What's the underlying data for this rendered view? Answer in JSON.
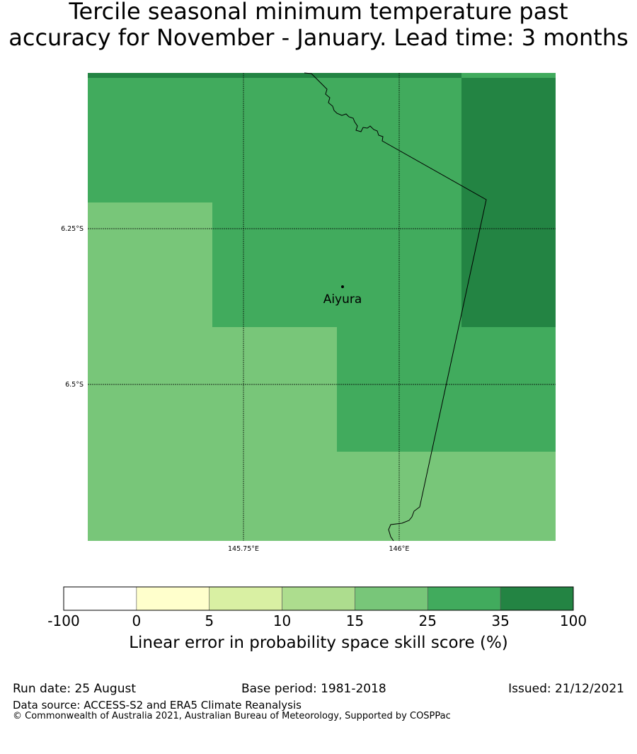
{
  "title": {
    "line1": "Tercile seasonal minimum temperature past",
    "line2": "accuracy for November - January. Lead time: 3 months"
  },
  "map": {
    "lat_labels": [
      "6.25°S",
      "6.5°S"
    ],
    "lon_labels": [
      "145.75°E",
      "146°E"
    ],
    "place_label": "Aiyura",
    "cells": [
      [
        "35-100",
        "35-100",
        "35-100",
        "35-100",
        "35-100",
        "35-100",
        "25-35"
      ],
      [
        "25-35",
        "25-35",
        "25-35",
        "25-35",
        "25-35",
        "25-35",
        "35-100"
      ],
      [
        "15-25",
        "15-25",
        "25-35",
        "25-35",
        "25-35",
        "25-35",
        "35-100"
      ],
      [
        "15-25",
        "15-25",
        "15-25",
        "15-25",
        "25-35",
        "25-35",
        "25-35"
      ],
      [
        "15-25",
        "15-25",
        "15-25",
        "15-25",
        "15-25",
        "15-25",
        "15-25"
      ]
    ]
  },
  "colorbar": {
    "ticks": [
      "-100",
      "0",
      "5",
      "10",
      "15",
      "25",
      "35",
      "100"
    ],
    "colors": [
      "#ffffff",
      "#ffffcc",
      "#d9f0a3",
      "#addd8e",
      "#78c679",
      "#41ab5d",
      "#238443"
    ],
    "label": "Linear error in probability space skill score (%)"
  },
  "footer": {
    "run_date": "Run date: 25 August",
    "base_period": "Base period: 1981-2018",
    "issued": "Issued: 21/12/2021",
    "data_source": "Data source: ACCESS-S2 and ERA5 Climate Reanalysis",
    "copyright": "© Commonwealth of Australia 2021, Australian Bureau of Meteorology, Supported by COSPPac"
  }
}
